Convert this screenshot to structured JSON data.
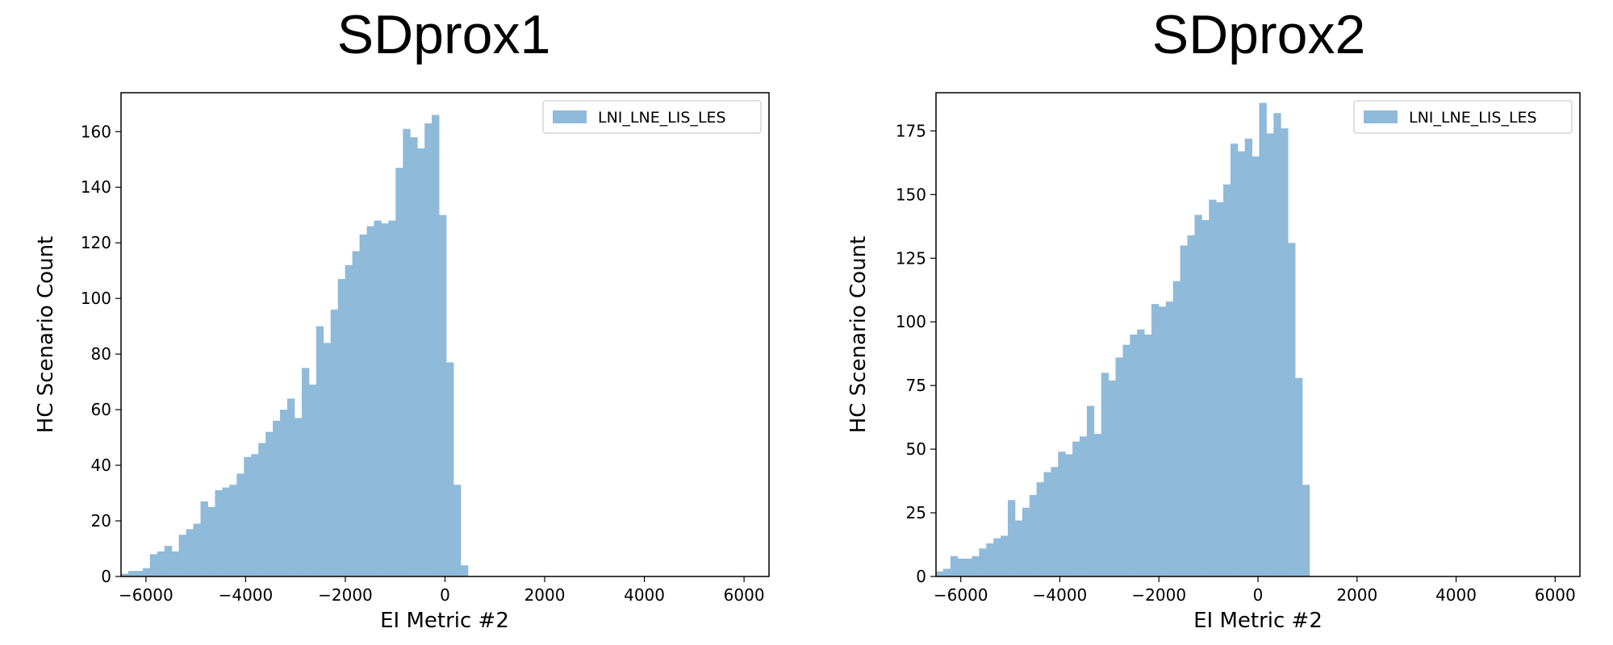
{
  "chart_data": [
    {
      "type": "bar",
      "title": "SDprox1",
      "xlabel": "EI Metric #2",
      "ylabel": "HC Scenario Count",
      "xlim": [
        -6500,
        6500
      ],
      "ylim": [
        0,
        174
      ],
      "xticks": [
        -6000,
        -4000,
        -2000,
        0,
        2000,
        4000,
        6000
      ],
      "xtick_labels": [
        "−6000",
        "−4000",
        "−2000",
        "0",
        "2000",
        "4000",
        "6000"
      ],
      "yticks": [
        0,
        20,
        40,
        60,
        80,
        100,
        120,
        140,
        160
      ],
      "yticks_labels": [
        "0",
        "20",
        "40",
        "60",
        "80",
        "100",
        "120",
        "140",
        "160"
      ],
      "grid": false,
      "legend_position": "top-right",
      "bar_color": "#8fbada",
      "series": [
        {
          "name": "LNI_LNE_LIS_LES",
          "bin_start": -6500,
          "bin_width": 145,
          "values": [
            1,
            2,
            2,
            3,
            8,
            9,
            11,
            9,
            15,
            17,
            19,
            27,
            25,
            31,
            32,
            33,
            37,
            43,
            44,
            48,
            52,
            56,
            60,
            64,
            57,
            75,
            69,
            90,
            84,
            96,
            107,
            112,
            117,
            123,
            126,
            128,
            127,
            128,
            147,
            161,
            158,
            154,
            163,
            166,
            130,
            77,
            33,
            4
          ]
        }
      ]
    },
    {
      "type": "bar",
      "title": "SDprox2",
      "xlabel": "EI Metric #2",
      "ylabel": "HC Scenario Count",
      "xlim": [
        -6500,
        6500
      ],
      "ylim": [
        0,
        190
      ],
      "xticks": [
        -6000,
        -4000,
        -2000,
        0,
        2000,
        4000,
        6000
      ],
      "xtick_labels": [
        "−6000",
        "−4000",
        "−2000",
        "0",
        "2000",
        "4000",
        "6000"
      ],
      "yticks": [
        0,
        25,
        50,
        75,
        100,
        125,
        150,
        175
      ],
      "yticks_labels": [
        "0",
        "25",
        "50",
        "75",
        "100",
        "125",
        "150",
        "175"
      ],
      "grid": false,
      "legend_position": "top-right",
      "bar_color": "#8fbada",
      "series": [
        {
          "name": "LNI_LNE_LIS_LES",
          "bin_start": -6500,
          "bin_width": 145,
          "values": [
            2,
            3,
            8,
            7,
            7,
            8,
            11,
            13,
            15,
            16,
            30,
            22,
            27,
            32,
            37,
            41,
            43,
            49,
            48,
            53,
            55,
            67,
            56,
            80,
            77,
            86,
            91,
            95,
            97,
            95,
            107,
            106,
            108,
            116,
            130,
            134,
            142,
            140,
            148,
            147,
            154,
            170,
            167,
            172,
            165,
            186,
            174,
            182,
            176,
            131,
            78,
            36
          ]
        }
      ]
    }
  ]
}
